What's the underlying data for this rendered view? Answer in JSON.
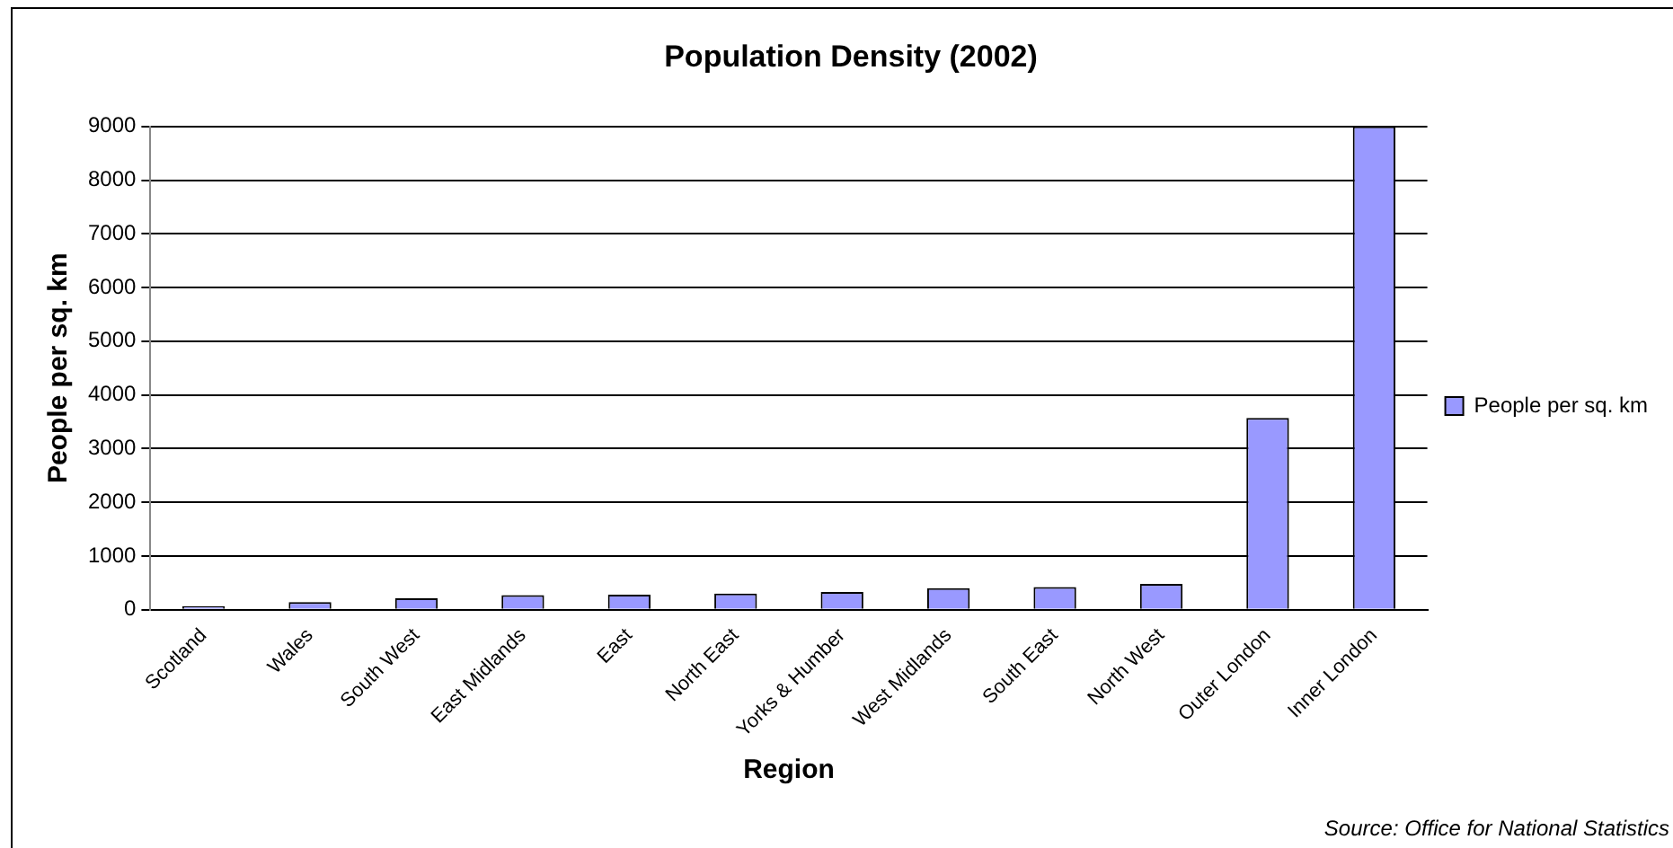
{
  "chart_data": {
    "type": "bar",
    "title": "Population Density (2002)",
    "xlabel": "Region",
    "ylabel": "People per sq. km",
    "categories": [
      "Scotland",
      "Wales",
      "South West",
      "East Midlands",
      "East",
      "North East",
      "Yorks & Humber",
      "West Midlands",
      "South East",
      "North West",
      "Outer London",
      "Inner London"
    ],
    "series": [
      {
        "name": "People per sq. km",
        "color": "#9999ff",
        "values": [
          65,
          140,
          210,
          270,
          280,
          300,
          330,
          400,
          420,
          480,
          3570,
          9000
        ]
      }
    ],
    "ylim": [
      0,
      9000
    ],
    "yticks": [
      0,
      1000,
      2000,
      3000,
      4000,
      5000,
      6000,
      7000,
      8000,
      9000
    ],
    "grid": "y",
    "legend": "right",
    "annotations": [
      "Source: Office for National Statistics"
    ]
  }
}
